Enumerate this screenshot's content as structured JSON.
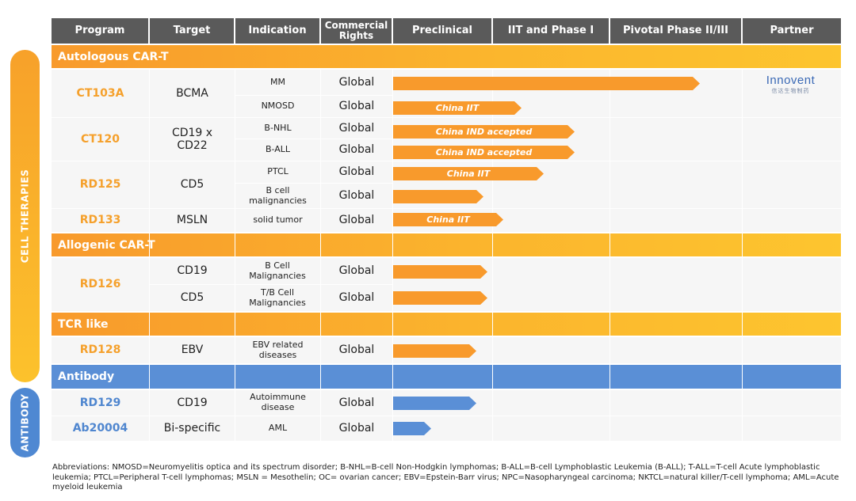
{
  "side_labels": {
    "cell": "CELL THERAPIES",
    "antibody": "ANTIBODY"
  },
  "header": {
    "program": "Program",
    "target": "Target",
    "indication": "Indication",
    "commercial": "Commercial Rights",
    "preclinical": "Preclinical",
    "phase1": "IIT and Phase I",
    "pivotal": "Pivotal Phase II/III",
    "partner": "Partner"
  },
  "sections": {
    "autologous": "Autologous CAR-T",
    "allogenic": "Allogenic CAR-T",
    "tcr": "TCR like",
    "antibody": "Antibody"
  },
  "programs": {
    "ct103a": {
      "name": "CT103A",
      "target": "BCMA"
    },
    "ct120": {
      "name": "CT120",
      "target": "CD19 x CD22"
    },
    "rd125": {
      "name": "RD125",
      "target": "CD5"
    },
    "rd133": {
      "name": "RD133",
      "target": "MSLN"
    },
    "rd126": {
      "name": "RD126",
      "targets": [
        "CD19",
        "CD5"
      ]
    },
    "rd128": {
      "name": "RD128",
      "target": "EBV"
    },
    "rd129": {
      "name": "RD129",
      "target": "CD19"
    },
    "ab20004": {
      "name": "Ab20004",
      "target": "Bi-specific"
    }
  },
  "indications": {
    "mm": "MM",
    "nmosd": "NMOSD",
    "bnhl": "B-NHL",
    "ball": "B-ALL",
    "ptcl": "PTCL",
    "bcell": "B cell malignancies",
    "solid": "solid tumor",
    "bcell2": "B Cell Malignancies",
    "tbcell": "T/B Cell Malignancies",
    "ebv": "EBV related diseases",
    "autoimmune": "Autoimmune disease",
    "aml": "AML"
  },
  "rights": "Global",
  "bar_labels": {
    "china_iit": "China IIT",
    "china_ind": "China IND accepted"
  },
  "partner": {
    "name": "Innovent",
    "sub": "信达生物制药"
  },
  "colors": {
    "orange": "#f89a2c",
    "yellow": "#fdc52f",
    "blue": "#5a8fd6",
    "header": "#5a5a5a"
  },
  "abbreviations": "Abbreviations: NMOSD=Neuromyelitis optica and its spectrum disorder; B-NHL=B-cell Non-Hodgkin lymphomas; B-ALL=B-cell Lymphoblastic Leukemia (B-ALL); T-ALL=T-cell Acute lymphoblastic leukemia; PTCL=Peripheral T-cell lymphomas; MSLN = Mesothelin; OC= ovarian cancer; EBV=Epstein-Barr virus; NPC=Nasopharyngeal carcinoma; NKTCL=natural killer/T-cell lymphoma; AML=Acute myeloid leukemia"
}
